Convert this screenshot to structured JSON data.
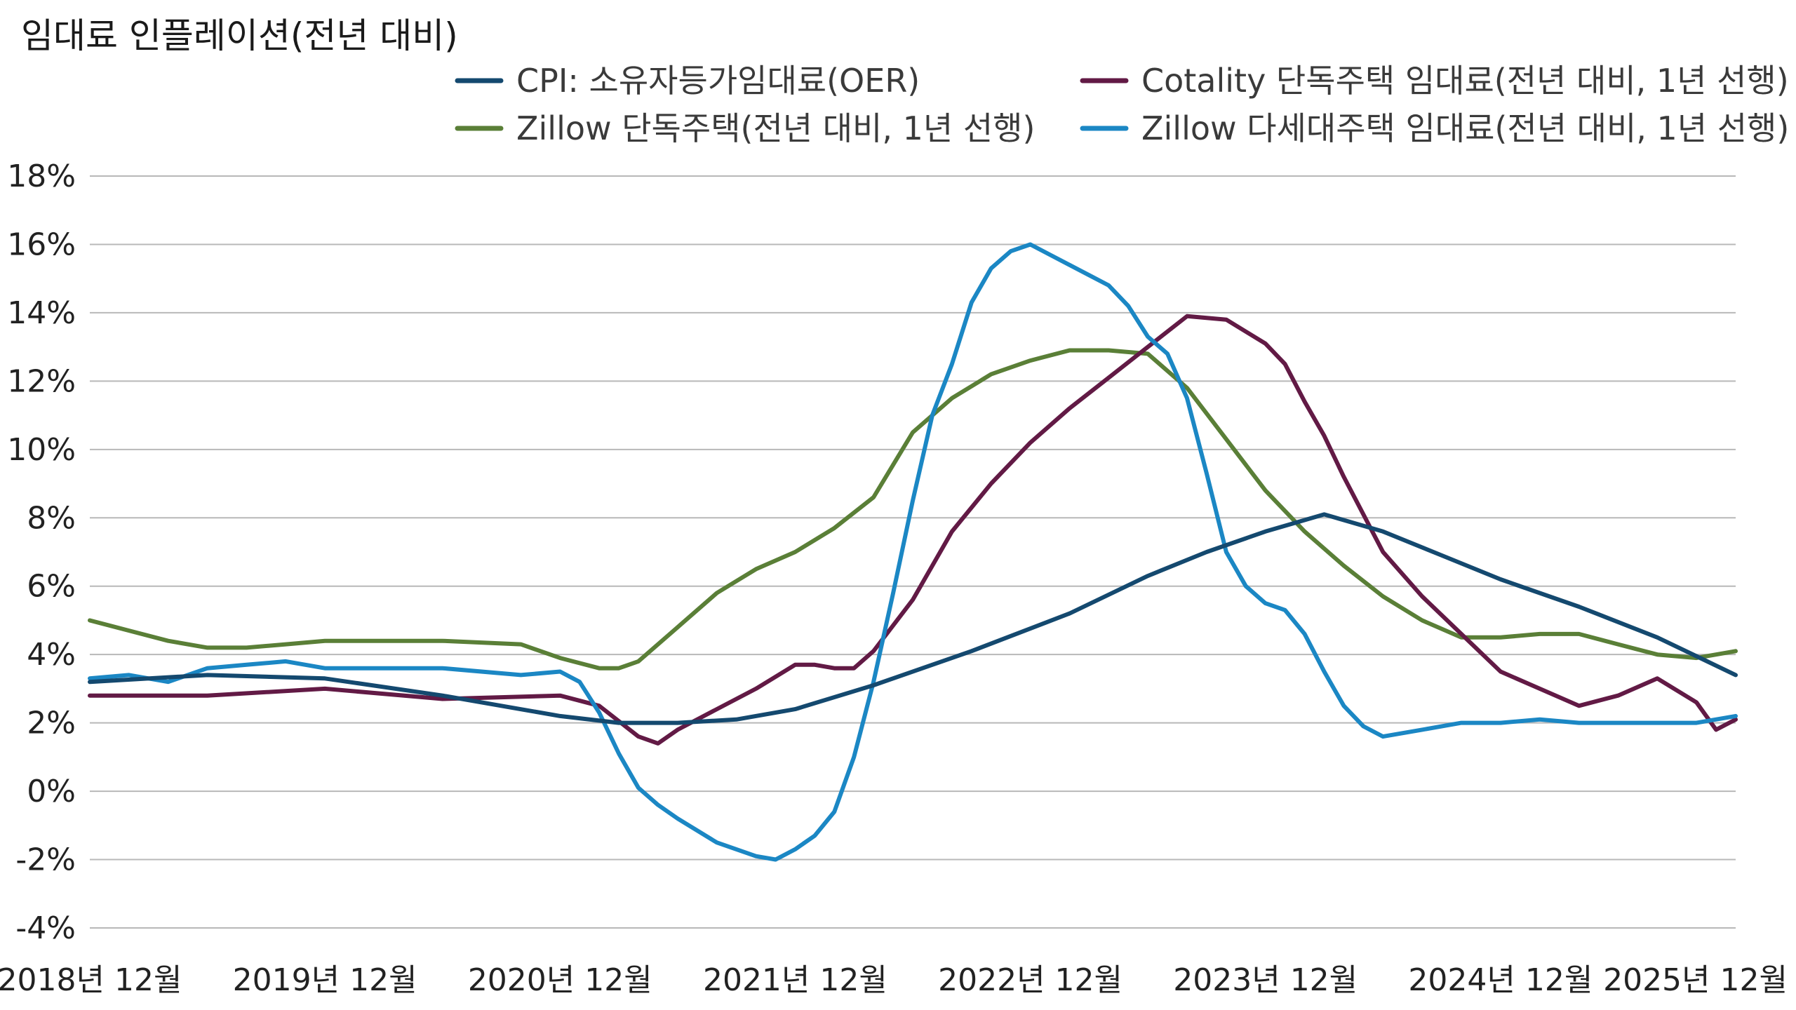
{
  "chart_data": {
    "type": "line",
    "title": "임대료 인플레이션(전년 대비)",
    "xlabel": "",
    "ylabel": "",
    "ylim": [
      -4,
      18
    ],
    "y_ticks": [
      18,
      16,
      14,
      12,
      10,
      8,
      6,
      4,
      2,
      0,
      -2,
      -4
    ],
    "y_tick_labels": [
      "18%",
      "16%",
      "14%",
      "12%",
      "10%",
      "8%",
      "6%",
      "4%",
      "2%",
      "0%",
      "-2%",
      "-4%"
    ],
    "x_ticks": [
      0,
      12,
      24,
      36,
      48,
      60,
      72,
      84
    ],
    "x_tick_labels": [
      "2018년 12월",
      "2019년 12월",
      "2020년 12월",
      "2021년 12월",
      "2022년 12월",
      "2023년 12월",
      "2024년 12월",
      "2025년 12월"
    ],
    "x_range": [
      0,
      84
    ],
    "legend_position": "top",
    "series": [
      {
        "name": "CPI: 소유자등가임대료(OER)",
        "color": "#14496f",
        "x": [
          0,
          6,
          12,
          18,
          24,
          27,
          30,
          33,
          36,
          40,
          45,
          50,
          54,
          57,
          60,
          63,
          66,
          69,
          72,
          76,
          80,
          84
        ],
        "values": [
          3.2,
          3.4,
          3.3,
          2.8,
          2.2,
          2.0,
          2.0,
          2.1,
          2.4,
          3.1,
          4.1,
          5.2,
          6.3,
          7.0,
          7.6,
          8.1,
          7.6,
          6.9,
          6.2,
          5.4,
          4.5,
          3.4
        ]
      },
      {
        "name": "Cotality 단독주택 임대료(전년 대비, 1년 선행)",
        "color": "#621a45",
        "x": [
          0,
          6,
          12,
          18,
          24,
          26,
          28,
          29,
          30,
          32,
          34,
          36,
          37,
          38,
          39,
          40,
          42,
          44,
          46,
          48,
          50,
          52,
          54,
          56,
          58,
          60,
          61,
          62,
          63,
          64,
          66,
          68,
          70,
          72,
          74,
          76,
          78,
          80,
          82,
          83,
          84
        ],
        "values": [
          2.8,
          2.8,
          3.0,
          2.7,
          2.8,
          2.5,
          1.6,
          1.4,
          1.8,
          2.4,
          3.0,
          3.7,
          3.7,
          3.6,
          3.6,
          4.1,
          5.6,
          7.6,
          9.0,
          10.2,
          11.2,
          12.1,
          13.0,
          13.9,
          13.8,
          13.1,
          12.5,
          11.4,
          10.4,
          9.2,
          7.0,
          5.7,
          4.6,
          3.5,
          3.0,
          2.5,
          2.8,
          3.3,
          2.6,
          1.8,
          2.1
        ]
      },
      {
        "name": "Zillow 단독주택(전년 대비, 1년 선행)",
        "color": "#5a7f37",
        "x": [
          0,
          2,
          4,
          6,
          8,
          10,
          12,
          18,
          22,
          24,
          26,
          27,
          28,
          30,
          32,
          34,
          36,
          38,
          40,
          42,
          44,
          46,
          48,
          50,
          52,
          54,
          56,
          58,
          60,
          62,
          64,
          66,
          68,
          70,
          72,
          74,
          76,
          78,
          80,
          82,
          84
        ],
        "values": [
          5.0,
          4.7,
          4.4,
          4.2,
          4.2,
          4.3,
          4.4,
          4.4,
          4.3,
          3.9,
          3.6,
          3.6,
          3.8,
          4.8,
          5.8,
          6.5,
          7.0,
          7.7,
          8.6,
          10.5,
          11.5,
          12.2,
          12.6,
          12.9,
          12.9,
          12.8,
          11.8,
          10.3,
          8.8,
          7.6,
          6.6,
          5.7,
          5.0,
          4.5,
          4.5,
          4.6,
          4.6,
          4.3,
          4.0,
          3.9,
          4.1
        ]
      },
      {
        "name": "Zillow 다세대주택 임대료(전년 대비, 1년 선행)",
        "color": "#1b87c4",
        "x": [
          0,
          2,
          4,
          6,
          8,
          10,
          12,
          18,
          22,
          24,
          25,
          26,
          27,
          28,
          29,
          30,
          32,
          34,
          35,
          36,
          37,
          38,
          39,
          40,
          41,
          42,
          43,
          44,
          45,
          46,
          47,
          48,
          49,
          50,
          51,
          52,
          53,
          54,
          55,
          56,
          57,
          58,
          59,
          60,
          61,
          62,
          63,
          64,
          65,
          66,
          68,
          70,
          72,
          74,
          76,
          78,
          80,
          82,
          84
        ],
        "values": [
          3.3,
          3.4,
          3.2,
          3.6,
          3.7,
          3.8,
          3.6,
          3.6,
          3.4,
          3.5,
          3.2,
          2.3,
          1.1,
          0.1,
          -0.4,
          -0.8,
          -1.5,
          -1.9,
          -2.0,
          -1.7,
          -1.3,
          -0.6,
          1.0,
          3.2,
          5.8,
          8.5,
          11.0,
          12.5,
          14.3,
          15.3,
          15.8,
          16.0,
          15.7,
          15.4,
          15.1,
          14.8,
          14.2,
          13.3,
          12.8,
          11.5,
          9.3,
          7.0,
          6.0,
          5.5,
          5.3,
          4.6,
          3.5,
          2.5,
          1.9,
          1.6,
          1.8,
          2.0,
          2.0,
          2.1,
          2.0,
          2.0,
          2.0,
          2.0,
          2.2
        ]
      }
    ]
  }
}
